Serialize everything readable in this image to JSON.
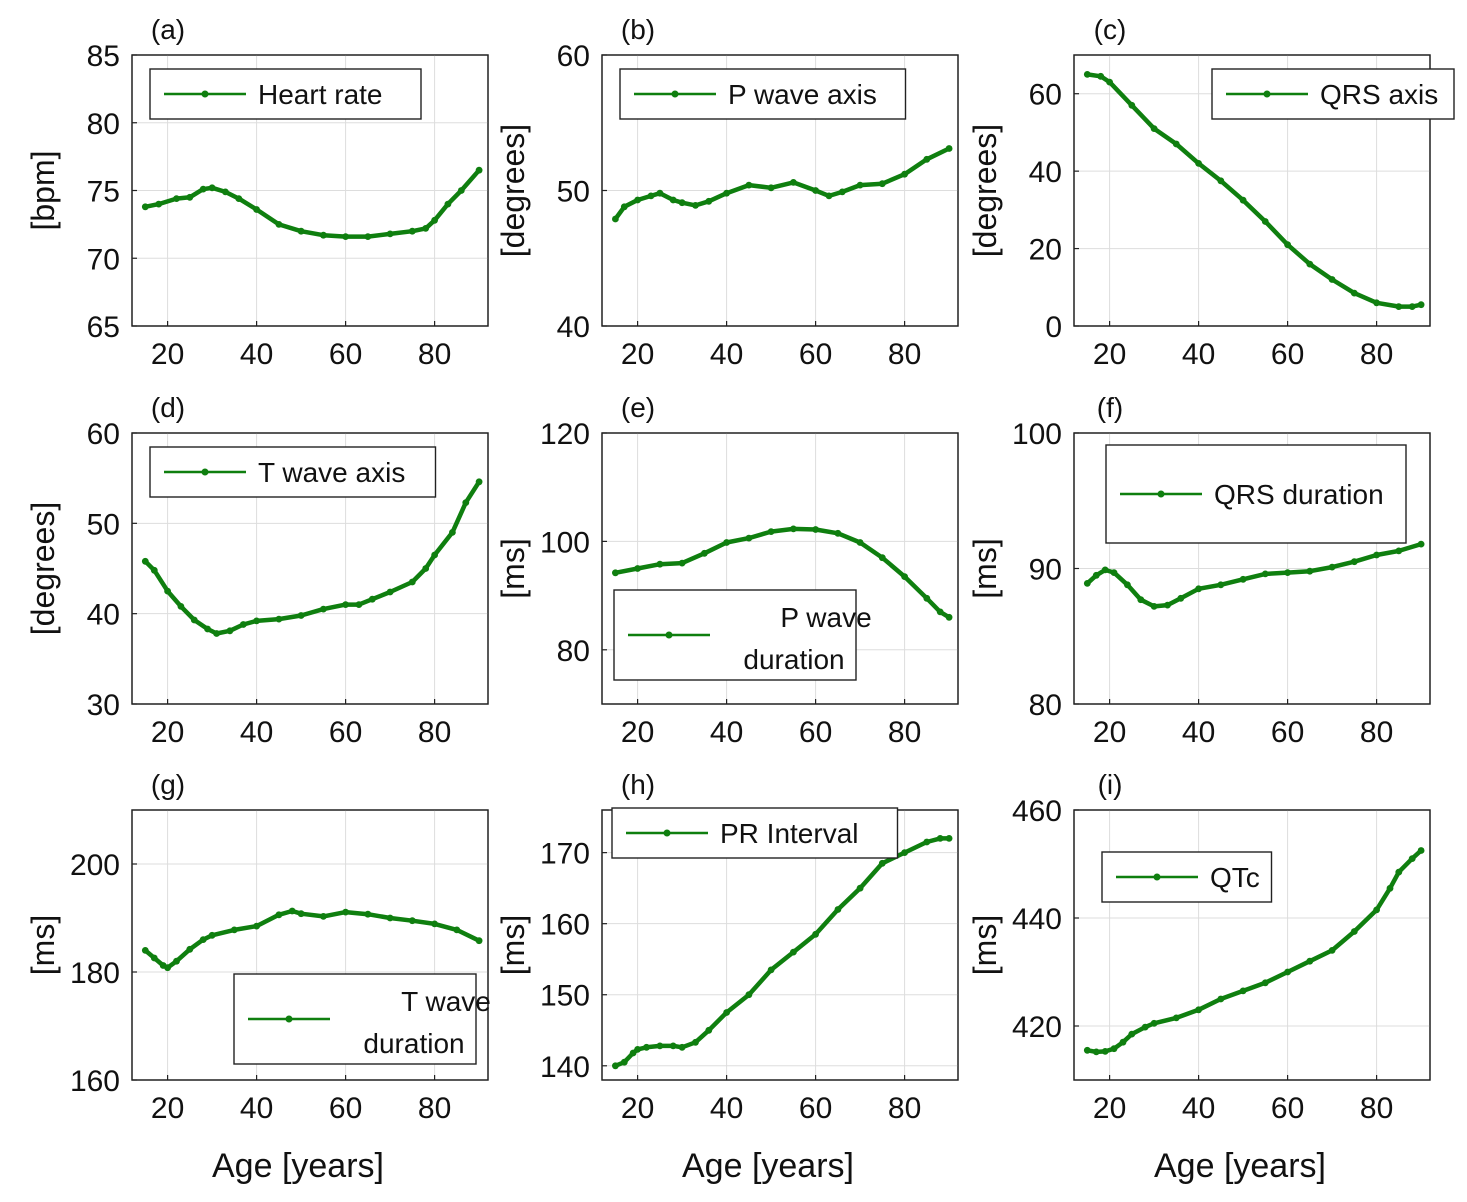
{
  "x_axis_label": "Age [years]",
  "colors": {
    "series": "#0f7f0f",
    "grid": "#dddddd",
    "axis": "#222222"
  },
  "chart_data": [
    {
      "id": "a",
      "panel_label": "(a)",
      "type": "line",
      "legend": "Heart rate",
      "legend_position": "top-left",
      "ylabel": "[bpm]",
      "ylim": [
        65,
        85
      ],
      "yticks": [
        65,
        70,
        75,
        80,
        85
      ],
      "xlim": [
        12,
        92
      ],
      "xticks": [
        20,
        40,
        60,
        80
      ],
      "x": [
        15,
        18,
        22,
        25,
        28,
        30,
        33,
        36,
        40,
        45,
        50,
        55,
        60,
        65,
        70,
        75,
        78,
        80,
        83,
        86,
        90
      ],
      "y": [
        73.8,
        74.0,
        74.4,
        74.5,
        75.1,
        75.2,
        74.9,
        74.4,
        73.6,
        72.5,
        72.0,
        71.7,
        71.6,
        71.6,
        71.8,
        72.0,
        72.2,
        72.8,
        74.0,
        75.0,
        76.5
      ]
    },
    {
      "id": "b",
      "panel_label": "(b)",
      "type": "line",
      "legend": "P wave axis",
      "legend_position": "top-left",
      "ylabel": "[degrees]",
      "ylim": [
        40,
        60
      ],
      "yticks": [
        40,
        50,
        60
      ],
      "xlim": [
        12,
        92
      ],
      "xticks": [
        20,
        40,
        60,
        80
      ],
      "x": [
        15,
        17,
        20,
        23,
        25,
        28,
        30,
        33,
        36,
        40,
        45,
        50,
        55,
        60,
        63,
        66,
        70,
        75,
        80,
        85,
        90
      ],
      "y": [
        47.9,
        48.8,
        49.3,
        49.6,
        49.8,
        49.3,
        49.1,
        48.9,
        49.2,
        49.8,
        50.4,
        50.2,
        50.6,
        50.0,
        49.6,
        49.9,
        50.4,
        50.5,
        51.2,
        52.3,
        53.1
      ]
    },
    {
      "id": "c",
      "panel_label": "(c)",
      "type": "line",
      "legend": "QRS axis",
      "legend_position": "top-right",
      "ylabel": "[degrees]",
      "ylim": [
        0,
        70
      ],
      "yticks": [
        0,
        20,
        40,
        60
      ],
      "xlim": [
        12,
        92
      ],
      "xticks": [
        20,
        40,
        60,
        80
      ],
      "x": [
        15,
        18,
        20,
        25,
        30,
        35,
        40,
        45,
        50,
        55,
        60,
        65,
        70,
        75,
        80,
        85,
        88,
        90
      ],
      "y": [
        65,
        64.5,
        63,
        57,
        51,
        47,
        42,
        37.5,
        32.5,
        27,
        21,
        16,
        12,
        8.5,
        6,
        5,
        5,
        5.5
      ]
    },
    {
      "id": "d",
      "panel_label": "(d)",
      "type": "line",
      "legend": "T wave axis",
      "legend_position": "top-left",
      "ylabel": "[degrees]",
      "ylim": [
        30,
        60
      ],
      "yticks": [
        30,
        40,
        50,
        60
      ],
      "xlim": [
        12,
        92
      ],
      "xticks": [
        20,
        40,
        60,
        80
      ],
      "x": [
        15,
        17,
        20,
        23,
        26,
        29,
        31,
        34,
        37,
        40,
        45,
        50,
        55,
        60,
        63,
        66,
        70,
        75,
        78,
        80,
        84,
        87,
        90
      ],
      "y": [
        45.8,
        44.8,
        42.5,
        40.8,
        39.3,
        38.3,
        37.8,
        38.1,
        38.8,
        39.2,
        39.4,
        39.8,
        40.5,
        41.0,
        41.0,
        41.6,
        42.4,
        43.5,
        45.0,
        46.5,
        49.0,
        52.3,
        54.6
      ]
    },
    {
      "id": "e",
      "panel_label": "(e)",
      "type": "line",
      "legend": "P  wave duration",
      "legend_lines": [
        "P  wave",
        "duration"
      ],
      "legend_position": "bottom-left",
      "ylabel": "[ms]",
      "ylim": [
        70,
        120
      ],
      "yticks": [
        80,
        100,
        120
      ],
      "xlim": [
        12,
        92
      ],
      "xticks": [
        20,
        40,
        60,
        80
      ],
      "x": [
        15,
        20,
        25,
        30,
        35,
        40,
        45,
        50,
        55,
        60,
        65,
        70,
        75,
        80,
        85,
        88,
        90
      ],
      "y": [
        94.2,
        95.0,
        95.8,
        96.0,
        97.8,
        99.8,
        100.6,
        101.8,
        102.3,
        102.2,
        101.5,
        99.8,
        97.0,
        93.5,
        89.5,
        87.0,
        86.0
      ]
    },
    {
      "id": "f",
      "panel_label": "(f)",
      "type": "line",
      "legend": "QRS duration",
      "legend_position": "top-right",
      "ylabel": "[ms]",
      "ylim": [
        80,
        100
      ],
      "yticks": [
        80,
        90,
        100
      ],
      "xlim": [
        12,
        92
      ],
      "xticks": [
        20,
        40,
        60,
        80
      ],
      "x": [
        15,
        17,
        19,
        21,
        24,
        27,
        30,
        33,
        36,
        40,
        45,
        50,
        55,
        60,
        65,
        70,
        75,
        80,
        85,
        90
      ],
      "y": [
        88.9,
        89.5,
        89.9,
        89.7,
        88.8,
        87.7,
        87.2,
        87.3,
        87.8,
        88.5,
        88.8,
        89.2,
        89.6,
        89.7,
        89.8,
        90.1,
        90.5,
        91.0,
        91.3,
        91.8
      ]
    },
    {
      "id": "g",
      "panel_label": "(g)",
      "type": "line",
      "legend": "T wave duration",
      "legend_lines": [
        "T wave",
        "duration"
      ],
      "legend_position": "bottom-right",
      "ylabel": "[ms]",
      "ylim": [
        160,
        210
      ],
      "yticks": [
        160,
        180,
        200
      ],
      "xlim": [
        12,
        92
      ],
      "xticks": [
        20,
        40,
        60,
        80
      ],
      "x": [
        15,
        17,
        19,
        20,
        22,
        25,
        28,
        30,
        35,
        40,
        45,
        48,
        50,
        55,
        60,
        65,
        70,
        75,
        80,
        85,
        90
      ],
      "y": [
        184.0,
        182.6,
        181.2,
        180.8,
        182.0,
        184.2,
        186.0,
        186.8,
        187.8,
        188.5,
        190.6,
        191.3,
        190.8,
        190.3,
        191.1,
        190.7,
        190.0,
        189.5,
        188.9,
        187.8,
        185.8
      ]
    },
    {
      "id": "h",
      "panel_label": "(h)",
      "type": "line",
      "legend": "PR Interval",
      "legend_position": "top-left",
      "ylabel": "[ms]",
      "ylim": [
        138,
        176
      ],
      "yticks": [
        140,
        150,
        160,
        170
      ],
      "xlim": [
        12,
        92
      ],
      "xticks": [
        20,
        40,
        60,
        80
      ],
      "x": [
        15,
        17,
        19,
        20,
        22,
        25,
        28,
        30,
        33,
        36,
        40,
        45,
        50,
        55,
        60,
        65,
        70,
        75,
        80,
        85,
        88,
        90
      ],
      "y": [
        140.0,
        140.5,
        141.8,
        142.3,
        142.6,
        142.8,
        142.8,
        142.6,
        143.3,
        145.0,
        147.5,
        150.0,
        153.5,
        156.0,
        158.5,
        162.0,
        165.0,
        168.5,
        170.0,
        171.5,
        172.0,
        172.0
      ]
    },
    {
      "id": "i",
      "panel_label": "(i)",
      "type": "line",
      "legend": "QTc",
      "legend_position": "top-left",
      "ylabel": "[ms]",
      "ylim": [
        410,
        460
      ],
      "yticks": [
        420,
        440,
        460
      ],
      "xlim": [
        12,
        92
      ],
      "xticks": [
        20,
        40,
        60,
        80
      ],
      "x": [
        15,
        17,
        19,
        21,
        23,
        25,
        28,
        30,
        35,
        40,
        45,
        50,
        55,
        60,
        65,
        70,
        75,
        80,
        83,
        85,
        88,
        90
      ],
      "y": [
        415.5,
        415.2,
        415.3,
        415.8,
        417.0,
        418.5,
        419.8,
        420.5,
        421.5,
        423.0,
        425.0,
        426.5,
        428.0,
        430.0,
        432.0,
        434.0,
        437.5,
        441.5,
        445.5,
        448.5,
        451.0,
        452.5
      ]
    }
  ]
}
